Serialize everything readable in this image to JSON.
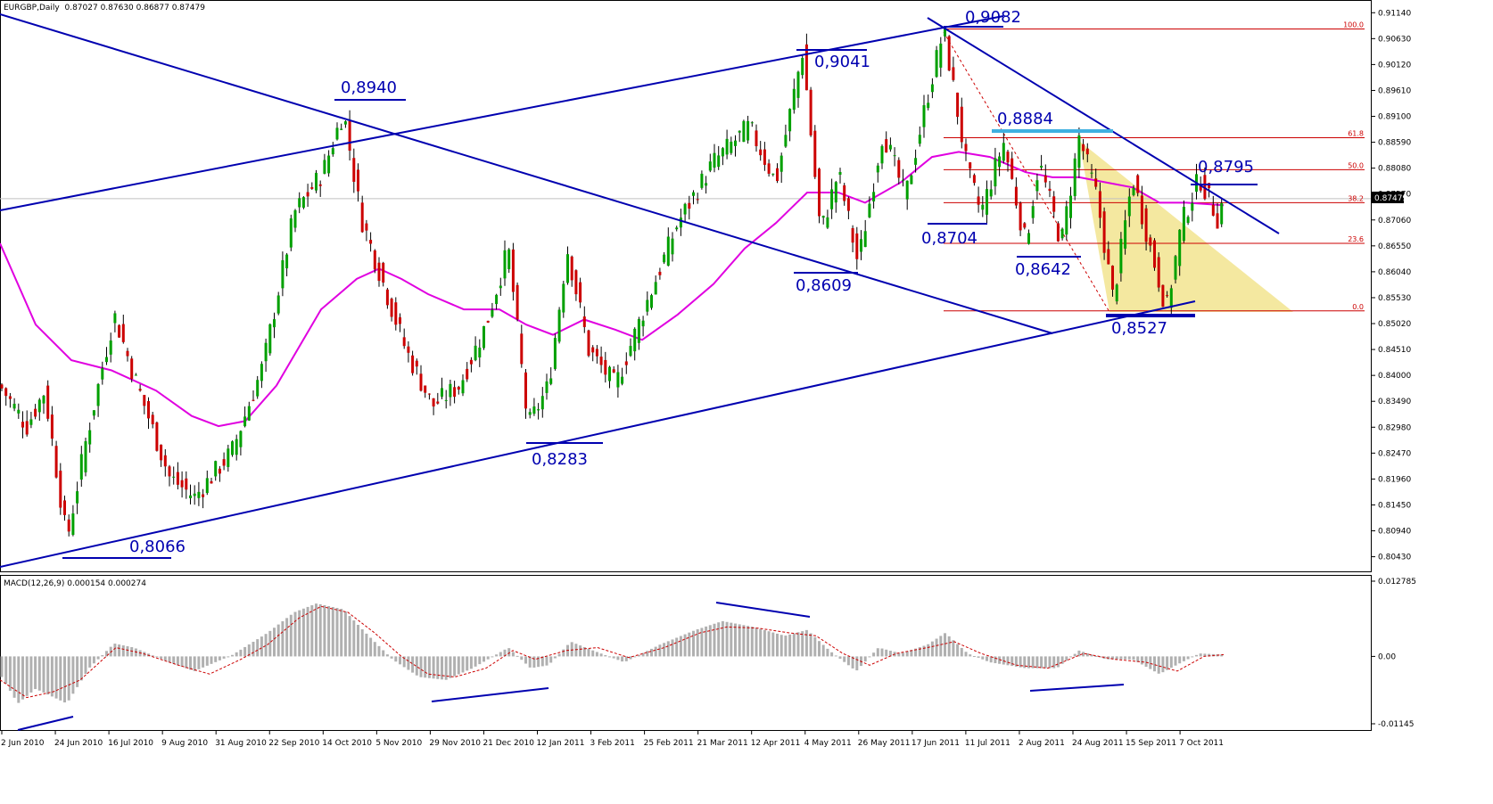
{
  "header": {
    "symbol_timeframe": "EURGBP,Daily",
    "ohlc": "0.87027 0.87630 0.86877 0.87479"
  },
  "macd_header": {
    "label": "MACD(12,26,9) 0.000154 0.000274"
  },
  "colors": {
    "bull_candle": "#00a000",
    "bear_candle": "#cc0000",
    "wick": "#000000",
    "moving_average": "#e000e0",
    "trendline": "#0000b0",
    "fib": "#cc0000",
    "fib_fill": "#f0e080",
    "macd_hist": "#b0b0b0",
    "macd_signal": "#cc0000",
    "highlight_line": "#40b0e0"
  },
  "chart_data": [
    {
      "type": "candlestick",
      "title": "EURGBP,Daily",
      "price_axis": {
        "ticks": [
          "0.91140",
          "0.90630",
          "0.90120",
          "0.89610",
          "0.89100",
          "0.88590",
          "0.88080",
          "0.87570",
          "0.87060",
          "0.86550",
          "0.86040",
          "0.85530",
          "0.85020",
          "0.84510",
          "0.84000",
          "0.83490",
          "0.82980",
          "0.82470",
          "0.81960",
          "0.81450",
          "0.80940",
          "0.80430"
        ],
        "ylim": [
          0.803,
          0.9125
        ],
        "current_price": "0.87479"
      },
      "date_axis": {
        "labels": [
          "2 Jun 2010",
          "24 Jun 2010",
          "16 Jul 2010",
          "9 Aug 2010",
          "31 Aug 2010",
          "22 Sep 2010",
          "14 Oct 2010",
          "5 Nov 2010",
          "29 Nov 2010",
          "21 Dec 2010",
          "12 Jan 2011",
          "3 Feb 2011",
          "25 Feb 2011",
          "21 Mar 2011",
          "12 Apr 2011",
          "4 May 2011",
          "26 May 2011",
          "17 Jun 2011",
          "11 Jul 2011",
          "2 Aug 2011",
          "24 Aug 2011",
          "15 Sep 2011",
          "7 Oct 2011"
        ]
      },
      "price_path": [
        [
          0,
          0.838
        ],
        [
          30,
          0.83
        ],
        [
          50,
          0.837
        ],
        [
          75,
          0.8075
        ],
        [
          95,
          0.826
        ],
        [
          128,
          0.852
        ],
        [
          150,
          0.84
        ],
        [
          190,
          0.82
        ],
        [
          218,
          0.816
        ],
        [
          260,
          0.825
        ],
        [
          295,
          0.842
        ],
        [
          330,
          0.872
        ],
        [
          362,
          0.88
        ],
        [
          385,
          0.892
        ],
        [
          405,
          0.871
        ],
        [
          430,
          0.858
        ],
        [
          455,
          0.845
        ],
        [
          485,
          0.834
        ],
        [
          515,
          0.838
        ],
        [
          545,
          0.85
        ],
        [
          570,
          0.865
        ],
        [
          592,
          0.83
        ],
        [
          615,
          0.838
        ],
        [
          636,
          0.865
        ],
        [
          660,
          0.845
        ],
        [
          690,
          0.838
        ],
        [
          720,
          0.852
        ],
        [
          760,
          0.87
        ],
        [
          800,
          0.882
        ],
        [
          840,
          0.889
        ],
        [
          870,
          0.878
        ],
        [
          900,
          0.904
        ],
        [
          920,
          0.868
        ],
        [
          940,
          0.88
        ],
        [
          962,
          0.862
        ],
        [
          990,
          0.888
        ],
        [
          1015,
          0.875
        ],
        [
          1040,
          0.895
        ],
        [
          1058,
          0.908
        ],
        [
          1085,
          0.88
        ],
        [
          1100,
          0.872
        ],
        [
          1125,
          0.886
        ],
        [
          1150,
          0.866
        ],
        [
          1165,
          0.882
        ],
        [
          1190,
          0.866
        ],
        [
          1210,
          0.887
        ],
        [
          1230,
          0.875
        ],
        [
          1248,
          0.855
        ],
        [
          1270,
          0.879
        ],
        [
          1290,
          0.865
        ],
        [
          1308,
          0.853
        ],
        [
          1325,
          0.87
        ],
        [
          1345,
          0.879
        ],
        [
          1365,
          0.871
        ],
        [
          1372,
          0.8748
        ]
      ],
      "moving_average_path": [
        [
          0,
          0.866
        ],
        [
          40,
          0.85
        ],
        [
          80,
          0.843
        ],
        [
          125,
          0.841
        ],
        [
          175,
          0.837
        ],
        [
          215,
          0.832
        ],
        [
          245,
          0.83
        ],
        [
          275,
          0.831
        ],
        [
          310,
          0.838
        ],
        [
          360,
          0.853
        ],
        [
          400,
          0.859
        ],
        [
          425,
          0.861
        ],
        [
          450,
          0.859
        ],
        [
          480,
          0.856
        ],
        [
          520,
          0.853
        ],
        [
          560,
          0.853
        ],
        [
          590,
          0.85
        ],
        [
          620,
          0.848
        ],
        [
          655,
          0.851
        ],
        [
          690,
          0.849
        ],
        [
          720,
          0.847
        ],
        [
          760,
          0.852
        ],
        [
          800,
          0.858
        ],
        [
          835,
          0.865
        ],
        [
          870,
          0.87
        ],
        [
          905,
          0.876
        ],
        [
          940,
          0.876
        ],
        [
          970,
          0.874
        ],
        [
          1010,
          0.878
        ],
        [
          1045,
          0.883
        ],
        [
          1075,
          0.884
        ],
        [
          1110,
          0.883
        ],
        [
          1150,
          0.88
        ],
        [
          1180,
          0.879
        ],
        [
          1210,
          0.879
        ],
        [
          1240,
          0.878
        ],
        [
          1270,
          0.877
        ],
        [
          1300,
          0.874
        ],
        [
          1330,
          0.874
        ],
        [
          1372,
          0.8735
        ]
      ],
      "fibonacci": {
        "levels": [
          "100.0",
          "61.8",
          "50.0",
          "38.2",
          "23.6",
          "0.0"
        ],
        "values": [
          0.9082,
          0.8868,
          0.8805,
          0.874,
          0.866,
          0.8527
        ]
      },
      "annotations": [
        "0,8940",
        "0,9041",
        "0,9082",
        "0,8884",
        "0,8795",
        "0,8704",
        "0,8642",
        "0,8609",
        "0,8527",
        "0,8283",
        "0,8066"
      ]
    },
    {
      "type": "bar",
      "title": "MACD(12,26,9)",
      "value_axis": {
        "ticks": [
          "0.012785",
          "0.00",
          "-0.01145"
        ],
        "ylim": [
          -0.01145,
          0.012785
        ]
      },
      "histogram_path": [
        [
          0,
          -0.003
        ],
        [
          20,
          -0.008
        ],
        [
          40,
          -0.0055
        ],
        [
          75,
          -0.008
        ],
        [
          100,
          -0.002
        ],
        [
          128,
          0.0022
        ],
        [
          150,
          0.0015
        ],
        [
          190,
          -0.001
        ],
        [
          218,
          -0.0025
        ],
        [
          260,
          0.0002
        ],
        [
          300,
          0.004
        ],
        [
          330,
          0.0075
        ],
        [
          355,
          0.009
        ],
        [
          385,
          0.008
        ],
        [
          410,
          0.004
        ],
        [
          440,
          -0.0005
        ],
        [
          470,
          -0.0035
        ],
        [
          500,
          -0.004
        ],
        [
          530,
          -0.002
        ],
        [
          570,
          0.0015
        ],
        [
          595,
          -0.002
        ],
        [
          615,
          -0.0015
        ],
        [
          640,
          0.0025
        ],
        [
          665,
          0.001
        ],
        [
          700,
          -0.001
        ],
        [
          740,
          0.002
        ],
        [
          780,
          0.0045
        ],
        [
          810,
          0.006
        ],
        [
          845,
          0.005
        ],
        [
          880,
          0.0035
        ],
        [
          905,
          0.0045
        ],
        [
          930,
          0.001
        ],
        [
          960,
          -0.0025
        ],
        [
          985,
          0.0015
        ],
        [
          1010,
          0.0005
        ],
        [
          1040,
          0.002
        ],
        [
          1060,
          0.004
        ],
        [
          1085,
          0.0005
        ],
        [
          1110,
          -0.001
        ],
        [
          1150,
          -0.002
        ],
        [
          1185,
          -0.002
        ],
        [
          1210,
          0.001
        ],
        [
          1240,
          -0.0005
        ],
        [
          1270,
          -0.0005
        ],
        [
          1300,
          -0.003
        ],
        [
          1325,
          -0.001
        ],
        [
          1345,
          0.0005
        ],
        [
          1372,
          0.0003
        ]
      ],
      "signal_path": [
        [
          0,
          -0.004
        ],
        [
          30,
          -0.007
        ],
        [
          60,
          -0.006
        ],
        [
          90,
          -0.004
        ],
        [
          130,
          0.0015
        ],
        [
          160,
          0.0005
        ],
        [
          200,
          -0.0015
        ],
        [
          235,
          -0.003
        ],
        [
          270,
          -0.0005
        ],
        [
          300,
          0.002
        ],
        [
          335,
          0.0065
        ],
        [
          360,
          0.0085
        ],
        [
          390,
          0.0075
        ],
        [
          420,
          0.004
        ],
        [
          450,
          0.0
        ],
        [
          480,
          -0.003
        ],
        [
          510,
          -0.0035
        ],
        [
          545,
          -0.002
        ],
        [
          575,
          0.001
        ],
        [
          600,
          -0.0005
        ],
        [
          635,
          0.001
        ],
        [
          670,
          0.0015
        ],
        [
          705,
          -0.0002
        ],
        [
          745,
          0.0015
        ],
        [
          785,
          0.004
        ],
        [
          815,
          0.005
        ],
        [
          850,
          0.0048
        ],
        [
          885,
          0.004
        ],
        [
          915,
          0.0035
        ],
        [
          945,
          0.0005
        ],
        [
          975,
          -0.0015
        ],
        [
          1005,
          0.0005
        ],
        [
          1040,
          0.0015
        ],
        [
          1070,
          0.0025
        ],
        [
          1100,
          0.0005
        ],
        [
          1140,
          -0.0015
        ],
        [
          1175,
          -0.002
        ],
        [
          1215,
          0.0005
        ],
        [
          1250,
          -0.0005
        ],
        [
          1285,
          -0.001
        ],
        [
          1320,
          -0.0025
        ],
        [
          1350,
          0.0
        ],
        [
          1372,
          0.0003
        ]
      ]
    }
  ]
}
